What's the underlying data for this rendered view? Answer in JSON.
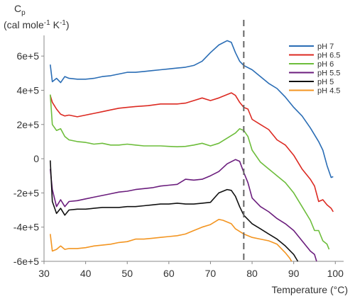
{
  "chart_data": {
    "type": "line",
    "ylabel_symbol": "C",
    "ylabel_symbol_sub": "p",
    "ylabel_units": "(cal mole",
    "ylabel_units_exp1": "-1",
    "ylabel_units_mid": " K",
    "ylabel_units_exp2": "-1",
    "ylabel_units_end": ")",
    "xlabel": "Temperature (°C)",
    "xlim": [
      30,
      102
    ],
    "ylim": [
      -600000,
      700000
    ],
    "x_ticks": [
      30,
      40,
      50,
      60,
      70,
      80,
      90,
      100
    ],
    "y_ticks": [
      {
        "value": 600000,
        "label": "6e+5"
      },
      {
        "value": 400000,
        "label": "4e+5"
      },
      {
        "value": 200000,
        "label": "2e+5"
      },
      {
        "value": 0,
        "label": "0"
      },
      {
        "value": -200000,
        "label": "-2e+5"
      },
      {
        "value": -400000,
        "label": "-4e+5"
      },
      {
        "value": -600000,
        "label": "-6e+5"
      }
    ],
    "vline_x": 78,
    "legend_position": "top-right",
    "series": [
      {
        "name": "pH 7",
        "color": "#2a6db5",
        "points": [
          [
            31.5,
            550000
          ],
          [
            32,
            450000
          ],
          [
            33,
            470000
          ],
          [
            34,
            445000
          ],
          [
            35,
            480000
          ],
          [
            36,
            470000
          ],
          [
            38,
            465000
          ],
          [
            40,
            465000
          ],
          [
            42,
            470000
          ],
          [
            44,
            480000
          ],
          [
            46,
            485000
          ],
          [
            48,
            495000
          ],
          [
            50,
            505000
          ],
          [
            52,
            505000
          ],
          [
            54,
            510000
          ],
          [
            56,
            515000
          ],
          [
            58,
            520000
          ],
          [
            60,
            525000
          ],
          [
            62,
            530000
          ],
          [
            64,
            535000
          ],
          [
            66,
            545000
          ],
          [
            68,
            570000
          ],
          [
            70,
            620000
          ],
          [
            72,
            665000
          ],
          [
            74,
            690000
          ],
          [
            75,
            680000
          ],
          [
            76,
            620000
          ],
          [
            77,
            570000
          ],
          [
            78,
            545000
          ],
          [
            80,
            520000
          ],
          [
            82,
            480000
          ],
          [
            84,
            440000
          ],
          [
            86,
            410000
          ],
          [
            88,
            360000
          ],
          [
            90,
            300000
          ],
          [
            92,
            250000
          ],
          [
            94,
            180000
          ],
          [
            96,
            100000
          ],
          [
            97,
            50000
          ],
          [
            98,
            -40000
          ],
          [
            99,
            -110000
          ],
          [
            99.5,
            -105000
          ]
        ]
      },
      {
        "name": "pH 6.5",
        "color": "#dc2a22",
        "points": [
          [
            31.5,
            370000
          ],
          [
            32,
            330000
          ],
          [
            33,
            290000
          ],
          [
            34,
            260000
          ],
          [
            35,
            250000
          ],
          [
            36,
            255000
          ],
          [
            38,
            245000
          ],
          [
            40,
            255000
          ],
          [
            42,
            265000
          ],
          [
            44,
            275000
          ],
          [
            46,
            285000
          ],
          [
            48,
            295000
          ],
          [
            50,
            300000
          ],
          [
            52,
            305000
          ],
          [
            55,
            310000
          ],
          [
            58,
            320000
          ],
          [
            60,
            320000
          ],
          [
            62,
            320000
          ],
          [
            64,
            325000
          ],
          [
            66,
            340000
          ],
          [
            68,
            355000
          ],
          [
            70,
            340000
          ],
          [
            72,
            355000
          ],
          [
            74,
            375000
          ],
          [
            75,
            385000
          ],
          [
            76,
            370000
          ],
          [
            77,
            330000
          ],
          [
            78,
            300000
          ],
          [
            79,
            290000
          ],
          [
            80,
            230000
          ],
          [
            82,
            200000
          ],
          [
            84,
            170000
          ],
          [
            86,
            110000
          ],
          [
            88,
            80000
          ],
          [
            90,
            20000
          ],
          [
            92,
            -60000
          ],
          [
            94,
            -120000
          ],
          [
            95,
            -160000
          ],
          [
            96,
            -250000
          ],
          [
            97,
            -240000
          ],
          [
            98,
            -270000
          ],
          [
            99,
            -290000
          ],
          [
            99.5,
            -310000
          ]
        ]
      },
      {
        "name": "pH 6",
        "color": "#6dbd3b",
        "points": [
          [
            31.5,
            375000
          ],
          [
            32,
            200000
          ],
          [
            33,
            165000
          ],
          [
            34,
            175000
          ],
          [
            35,
            130000
          ],
          [
            36,
            110000
          ],
          [
            38,
            100000
          ],
          [
            40,
            95000
          ],
          [
            42,
            85000
          ],
          [
            44,
            90000
          ],
          [
            46,
            80000
          ],
          [
            48,
            80000
          ],
          [
            50,
            85000
          ],
          [
            52,
            80000
          ],
          [
            54,
            75000
          ],
          [
            56,
            75000
          ],
          [
            58,
            75000
          ],
          [
            60,
            72000
          ],
          [
            62,
            70000
          ],
          [
            64,
            72000
          ],
          [
            66,
            80000
          ],
          [
            68,
            90000
          ],
          [
            70,
            75000
          ],
          [
            72,
            90000
          ],
          [
            74,
            120000
          ],
          [
            76,
            150000
          ],
          [
            77,
            175000
          ],
          [
            78,
            165000
          ],
          [
            79,
            130000
          ],
          [
            80,
            50000
          ],
          [
            82,
            -20000
          ],
          [
            84,
            -60000
          ],
          [
            86,
            -100000
          ],
          [
            88,
            -140000
          ],
          [
            90,
            -200000
          ],
          [
            92,
            -280000
          ],
          [
            94,
            -360000
          ],
          [
            95,
            -420000
          ],
          [
            96,
            -420000
          ],
          [
            97,
            -480000
          ],
          [
            98,
            -500000
          ],
          [
            98.5,
            -530000
          ]
        ]
      },
      {
        "name": "pH 5.5",
        "color": "#6b1d7d",
        "points": [
          [
            31.5,
            -60000
          ],
          [
            32,
            -180000
          ],
          [
            33,
            -280000
          ],
          [
            34,
            -240000
          ],
          [
            35,
            -280000
          ],
          [
            36,
            -250000
          ],
          [
            38,
            -245000
          ],
          [
            40,
            -235000
          ],
          [
            42,
            -225000
          ],
          [
            44,
            -215000
          ],
          [
            46,
            -205000
          ],
          [
            48,
            -195000
          ],
          [
            50,
            -190000
          ],
          [
            52,
            -180000
          ],
          [
            54,
            -175000
          ],
          [
            56,
            -170000
          ],
          [
            58,
            -160000
          ],
          [
            60,
            -155000
          ],
          [
            62,
            -150000
          ],
          [
            64,
            -120000
          ],
          [
            66,
            -125000
          ],
          [
            68,
            -120000
          ],
          [
            70,
            -100000
          ],
          [
            72,
            -75000
          ],
          [
            74,
            -30000
          ],
          [
            76,
            -5000
          ],
          [
            77,
            -15000
          ],
          [
            78,
            -80000
          ],
          [
            79,
            -140000
          ],
          [
            80,
            -230000
          ],
          [
            82,
            -280000
          ],
          [
            84,
            -310000
          ],
          [
            86,
            -350000
          ],
          [
            88,
            -380000
          ],
          [
            90,
            -420000
          ],
          [
            92,
            -480000
          ],
          [
            94,
            -540000
          ],
          [
            95,
            -560000
          ],
          [
            95.5,
            -600000
          ]
        ]
      },
      {
        "name": "pH 5",
        "color": "#111111",
        "points": [
          [
            31.5,
            -10000
          ],
          [
            32,
            -250000
          ],
          [
            33,
            -320000
          ],
          [
            34,
            -290000
          ],
          [
            35,
            -330000
          ],
          [
            36,
            -300000
          ],
          [
            38,
            -295000
          ],
          [
            40,
            -295000
          ],
          [
            42,
            -290000
          ],
          [
            44,
            -285000
          ],
          [
            46,
            -285000
          ],
          [
            48,
            -285000
          ],
          [
            50,
            -280000
          ],
          [
            52,
            -280000
          ],
          [
            54,
            -275000
          ],
          [
            56,
            -270000
          ],
          [
            58,
            -265000
          ],
          [
            60,
            -265000
          ],
          [
            62,
            -260000
          ],
          [
            64,
            -265000
          ],
          [
            66,
            -265000
          ],
          [
            68,
            -260000
          ],
          [
            70,
            -255000
          ],
          [
            72,
            -200000
          ],
          [
            74,
            -180000
          ],
          [
            75,
            -185000
          ],
          [
            76,
            -220000
          ],
          [
            77,
            -280000
          ],
          [
            78,
            -330000
          ],
          [
            80,
            -380000
          ],
          [
            82,
            -410000
          ],
          [
            84,
            -440000
          ],
          [
            86,
            -470000
          ],
          [
            88,
            -510000
          ],
          [
            90,
            -560000
          ],
          [
            91,
            -600000
          ]
        ]
      },
      {
        "name": "pH 4.5",
        "color": "#f39521",
        "points": [
          [
            31.5,
            -440000
          ],
          [
            32,
            -540000
          ],
          [
            33,
            -530000
          ],
          [
            34,
            -510000
          ],
          [
            35,
            -530000
          ],
          [
            36,
            -525000
          ],
          [
            38,
            -525000
          ],
          [
            40,
            -520000
          ],
          [
            42,
            -510000
          ],
          [
            44,
            -505000
          ],
          [
            46,
            -500000
          ],
          [
            48,
            -490000
          ],
          [
            50,
            -485000
          ],
          [
            52,
            -470000
          ],
          [
            54,
            -470000
          ],
          [
            56,
            -465000
          ],
          [
            58,
            -460000
          ],
          [
            60,
            -455000
          ],
          [
            62,
            -450000
          ],
          [
            64,
            -440000
          ],
          [
            66,
            -420000
          ],
          [
            68,
            -400000
          ],
          [
            70,
            -385000
          ],
          [
            72,
            -355000
          ],
          [
            73,
            -360000
          ],
          [
            75,
            -380000
          ],
          [
            76,
            -410000
          ],
          [
            78,
            -440000
          ],
          [
            80,
            -460000
          ],
          [
            82,
            -470000
          ],
          [
            84,
            -480000
          ],
          [
            86,
            -500000
          ],
          [
            88,
            -550000
          ],
          [
            89,
            -580000
          ],
          [
            89.5,
            -600000
          ]
        ]
      }
    ]
  }
}
